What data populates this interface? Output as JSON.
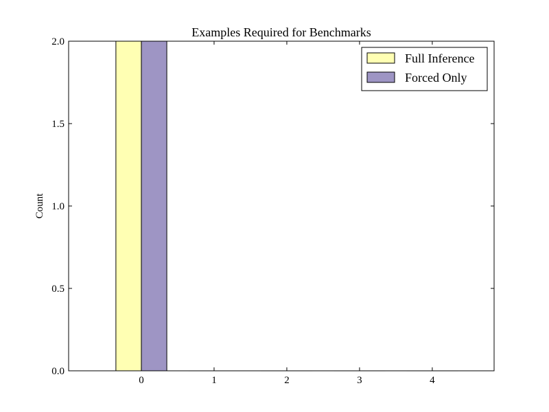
{
  "chart_data": {
    "type": "bar",
    "title": "Examples Required for Benchmarks",
    "xlabel": "",
    "ylabel": "Count",
    "categories": [
      "0",
      "1",
      "2",
      "3",
      "4"
    ],
    "series": [
      {
        "name": "Full Inference",
        "values": [
          2,
          0,
          0,
          0,
          0
        ],
        "color": "#ffffb3"
      },
      {
        "name": "Forced Only",
        "values": [
          2,
          0,
          0,
          0,
          0
        ],
        "color": "#9e95c4"
      }
    ],
    "ylim": [
      0,
      2.0
    ],
    "xlim": [
      -1.0,
      4.85
    ],
    "yticks": [
      "0.0",
      "0.5",
      "1.0",
      "1.5",
      "2.0"
    ],
    "grid": false,
    "legend_position": "top-right"
  }
}
